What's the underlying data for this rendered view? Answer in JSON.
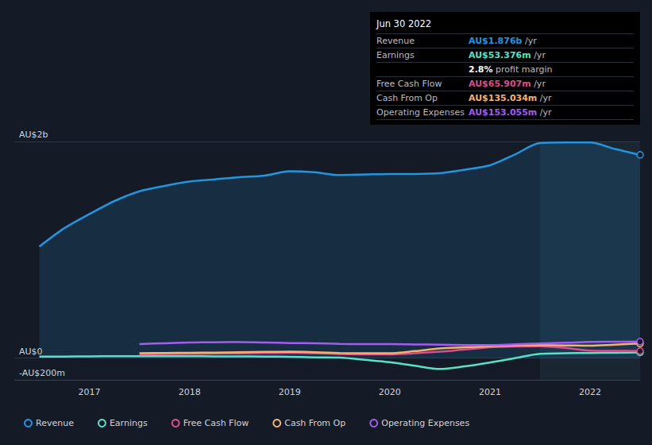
{
  "chart_data": {
    "type": "line",
    "x": [
      2016.5,
      2016.75,
      2017.0,
      2017.25,
      2017.5,
      2017.75,
      2018.0,
      2018.25,
      2018.5,
      2018.75,
      2019.0,
      2019.25,
      2019.5,
      2019.75,
      2020.0,
      2020.25,
      2020.5,
      2020.75,
      2021.0,
      2021.25,
      2021.5,
      2021.75,
      2022.0,
      2022.25,
      2022.5
    ],
    "xlim": [
      2016.25,
      2022.5
    ],
    "xticks": [
      2017,
      2018,
      2019,
      2020,
      2021,
      2022
    ],
    "ylim": [
      -200,
      2000
    ],
    "yticks": [
      {
        "value": -200,
        "label": "-AU$200m"
      },
      {
        "value": 0,
        "label": "AU$0"
      },
      {
        "value": 2000,
        "label": "AU$2b"
      }
    ],
    "grid": true,
    "legend": "bottom-left",
    "highlight": [
      2021.5,
      2022.5
    ],
    "series": [
      {
        "name": "Revenue",
        "color": "#2394df",
        "type": "area",
        "values": [
          1030,
          1200,
          1330,
          1450,
          1540,
          1590,
          1630,
          1650,
          1670,
          1685,
          1725,
          1715,
          1690,
          1695,
          1700,
          1700,
          1706,
          1740,
          1780,
          1880,
          1985,
          1990,
          1990,
          1930,
          1876
        ]
      },
      {
        "name": "Earnings",
        "color": "#58e1c6",
        "values": [
          15,
          15,
          17,
          18,
          18,
          18,
          18,
          17,
          16,
          15,
          12,
          8,
          5,
          -15,
          -37,
          -70,
          -100,
          -75,
          -40,
          0,
          40,
          45,
          48,
          50,
          53.376
        ]
      },
      {
        "name": "Free Cash Flow",
        "color": "#d84f8c",
        "values": [
          null,
          null,
          null,
          null,
          35,
          38,
          40,
          42,
          44,
          47,
          50,
          45,
          38,
          35,
          35,
          45,
          60,
          80,
          100,
          108,
          110,
          95,
          70,
          68,
          65.907
        ]
      },
      {
        "name": "Cash From Op",
        "color": "#f4b170",
        "values": [
          null,
          null,
          null,
          null,
          45,
          48,
          50,
          52,
          55,
          58,
          60,
          55,
          48,
          45,
          45,
          65,
          90,
          100,
          110,
          118,
          120,
          118,
          115,
          125,
          135.034
        ]
      },
      {
        "name": "Operating Expenses",
        "color": "#a35cf0",
        "values": [
          null,
          null,
          null,
          null,
          130,
          138,
          145,
          147,
          148,
          145,
          140,
          138,
          132,
          130,
          130,
          127,
          124,
          121,
          120,
          128,
          135,
          142,
          150,
          152,
          153.055
        ]
      }
    ],
    "info_box": {
      "title": "Jun 30 2022",
      "rows": [
        {
          "label": "Revenue",
          "value": "AU$1.876b",
          "unit": "/yr",
          "color": "#2394df"
        },
        {
          "label": "Earnings",
          "value": "AU$53.376m",
          "unit": "/yr",
          "color": "#58e1c6"
        },
        {
          "margin_value": "2.8%",
          "margin_label": "profit margin"
        },
        {
          "label": "Free Cash Flow",
          "value": "AU$65.907m",
          "unit": "/yr",
          "color": "#d84f8c"
        },
        {
          "label": "Cash From Op",
          "value": "AU$135.034m",
          "unit": "/yr",
          "color": "#f4b170"
        },
        {
          "label": "Operating Expenses",
          "value": "AU$153.055m",
          "unit": "/yr",
          "color": "#a35cf0"
        }
      ]
    }
  }
}
